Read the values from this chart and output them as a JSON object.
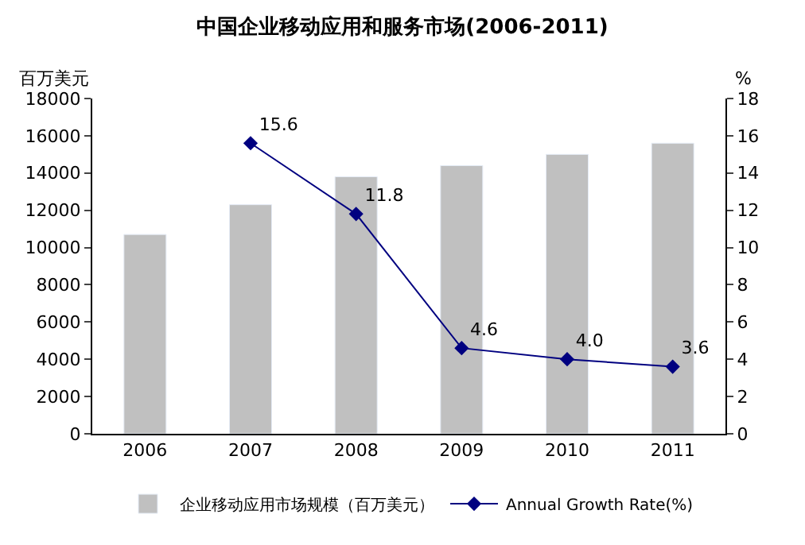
{
  "chart_data": {
    "type": "bar",
    "title": "中国企业移动应用和服务市场(2006-2011)",
    "ylabel": "百万美元",
    "y2label": "%",
    "categories": [
      "2006",
      "2007",
      "2008",
      "2009",
      "2010",
      "2011"
    ],
    "series": [
      {
        "name": "企业移动应用市场规模（百万美元）",
        "color": "#c0c0c0",
        "values": [
          10700,
          12300,
          13800,
          14400,
          15000,
          15600
        ]
      },
      {
        "name": "Annual Growth Rate(%)",
        "type": "line",
        "axis": "y2",
        "color": "#000080",
        "marker": "diamond",
        "line_style": "solid",
        "values": [
          null,
          15.6,
          11.8,
          4.6,
          4.0,
          3.6
        ],
        "value_labels": [
          null,
          "15.6",
          "11.8",
          "4.6",
          "4.0",
          "3.6"
        ]
      }
    ],
    "ylim": [
      0,
      18000
    ],
    "yticks": [
      0,
      2000,
      4000,
      6000,
      8000,
      10000,
      12000,
      14000,
      16000,
      18000
    ],
    "y2lim": [
      0,
      18
    ],
    "y2ticks": [
      0,
      2,
      4,
      6,
      8,
      10,
      12,
      14,
      16,
      18
    ],
    "legend": "bottom"
  }
}
